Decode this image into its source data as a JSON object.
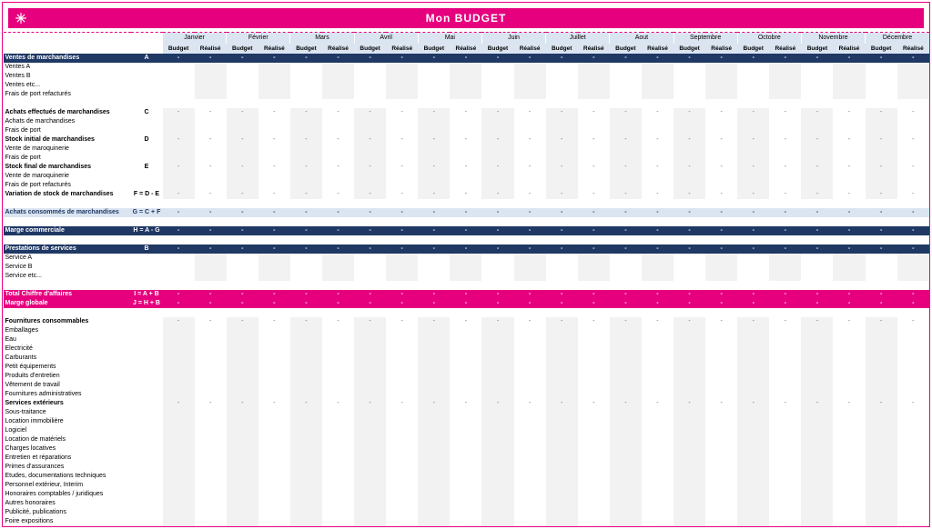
{
  "colors": {
    "pink": "#e6007e",
    "navy": "#1f3864",
    "paleblue": "#dbe5f1",
    "stripe": "#f2f2f2"
  },
  "title": "Mon BUDGET",
  "months": [
    "Janvier",
    "Février",
    "Mars",
    "Avril",
    "Mai",
    "Juin",
    "Juillet",
    "Aout",
    "Septembre",
    "Octobre",
    "Novembre",
    "Décembre"
  ],
  "colhead": {
    "budget": "Budget",
    "realise": "Réalisé"
  },
  "dash": "-",
  "rows": [
    {
      "style": "section-blue",
      "label": "Ventes de marchandises",
      "ref": "A",
      "cells": "dash"
    },
    {
      "style": "stripe-r",
      "label": "Ventes A"
    },
    {
      "style": "stripe-r",
      "label": "Ventes B"
    },
    {
      "style": "stripe-r",
      "label": "Ventes etc..."
    },
    {
      "style": "stripe-r",
      "label": "Frais de port refacturés"
    },
    {
      "style": "",
      "label": "",
      "spacer": true
    },
    {
      "style": "bold-row stripe-b",
      "label": "Achats effectués de marchandises",
      "ref": "C",
      "cells": "dash"
    },
    {
      "style": "stripe-b",
      "label": "Achats de marchandises"
    },
    {
      "style": "stripe-b",
      "label": "Frais de port"
    },
    {
      "style": "bold-row stripe-b",
      "label": "Stock initial de marchandises",
      "ref": "D",
      "cells": "dash"
    },
    {
      "style": "stripe-b",
      "label": "Vente de maroquinerie"
    },
    {
      "style": "stripe-b",
      "label": "Frais de port"
    },
    {
      "style": "bold-row stripe-b",
      "label": "Stock final de marchandises",
      "ref": "E",
      "cells": "dash"
    },
    {
      "style": "stripe-b",
      "label": "Vente de maroquinerie"
    },
    {
      "style": "stripe-b",
      "label": "Frais de port refacturés"
    },
    {
      "style": "bold-row stripe-b",
      "label": "Variation de stock de marchandises",
      "ref": "F = D - E",
      "cells": "dash"
    },
    {
      "style": "",
      "label": "",
      "spacer": true
    },
    {
      "style": "section-light",
      "label": "Achats consommés de marchandises",
      "ref": "G = C + F",
      "cells": "dash"
    },
    {
      "style": "",
      "label": "",
      "spacer": true
    },
    {
      "style": "section-blue",
      "label": "Marge commerciale",
      "ref": "H = A - G",
      "cells": "dash"
    },
    {
      "style": "",
      "label": "",
      "spacer": true
    },
    {
      "style": "section-blue",
      "label": "Prestations de services",
      "ref": "B",
      "cells": "dash"
    },
    {
      "style": "stripe-r",
      "label": "Service A"
    },
    {
      "style": "stripe-r",
      "label": "Service B"
    },
    {
      "style": "stripe-r",
      "label": "Service etc..."
    },
    {
      "style": "",
      "label": "",
      "spacer": true
    },
    {
      "style": "section-pink",
      "label": "Total Chiffre d'affaires",
      "ref": "I = A + B",
      "cells": "dash"
    },
    {
      "style": "section-pink",
      "label": "Marge globale",
      "ref": "J = H + B",
      "cells": "dash"
    },
    {
      "style": "",
      "label": "",
      "spacer": true
    },
    {
      "style": "bold-row stripe-b",
      "label": "Fournitures consommables",
      "cells": "dash"
    },
    {
      "style": "stripe-b",
      "label": "Emballages"
    },
    {
      "style": "stripe-b",
      "label": "Eau"
    },
    {
      "style": "stripe-b",
      "label": "Electricité"
    },
    {
      "style": "stripe-b",
      "label": "Carburants"
    },
    {
      "style": "stripe-b",
      "label": "Petit équipements"
    },
    {
      "style": "stripe-b",
      "label": "Produits d'entretien"
    },
    {
      "style": "stripe-b",
      "label": "Vêtement de travail"
    },
    {
      "style": "stripe-b",
      "label": "Fournitures administratives"
    },
    {
      "style": "bold-row stripe-b",
      "label": "Services extérieurs",
      "cells": "dash"
    },
    {
      "style": "stripe-b",
      "label": "Sous-traitance"
    },
    {
      "style": "stripe-b",
      "label": "Location immobilière"
    },
    {
      "style": "stripe-b",
      "label": "Logiciel"
    },
    {
      "style": "stripe-b",
      "label": "Location de matériels"
    },
    {
      "style": "stripe-b",
      "label": "Charges locatives"
    },
    {
      "style": "stripe-b",
      "label": "Entretien et réparations"
    },
    {
      "style": "stripe-b",
      "label": "Primes d'assurances"
    },
    {
      "style": "stripe-b",
      "label": "Etudes, documentations techniques"
    },
    {
      "style": "stripe-b",
      "label": "Personnel extérieur, Interim"
    },
    {
      "style": "stripe-b",
      "label": "Honoraires comptables / juridiques"
    },
    {
      "style": "stripe-b",
      "label": "Autres honoraires"
    },
    {
      "style": "stripe-b",
      "label": "Publicité, publications"
    },
    {
      "style": "stripe-b",
      "label": "Foire expositions"
    }
  ]
}
